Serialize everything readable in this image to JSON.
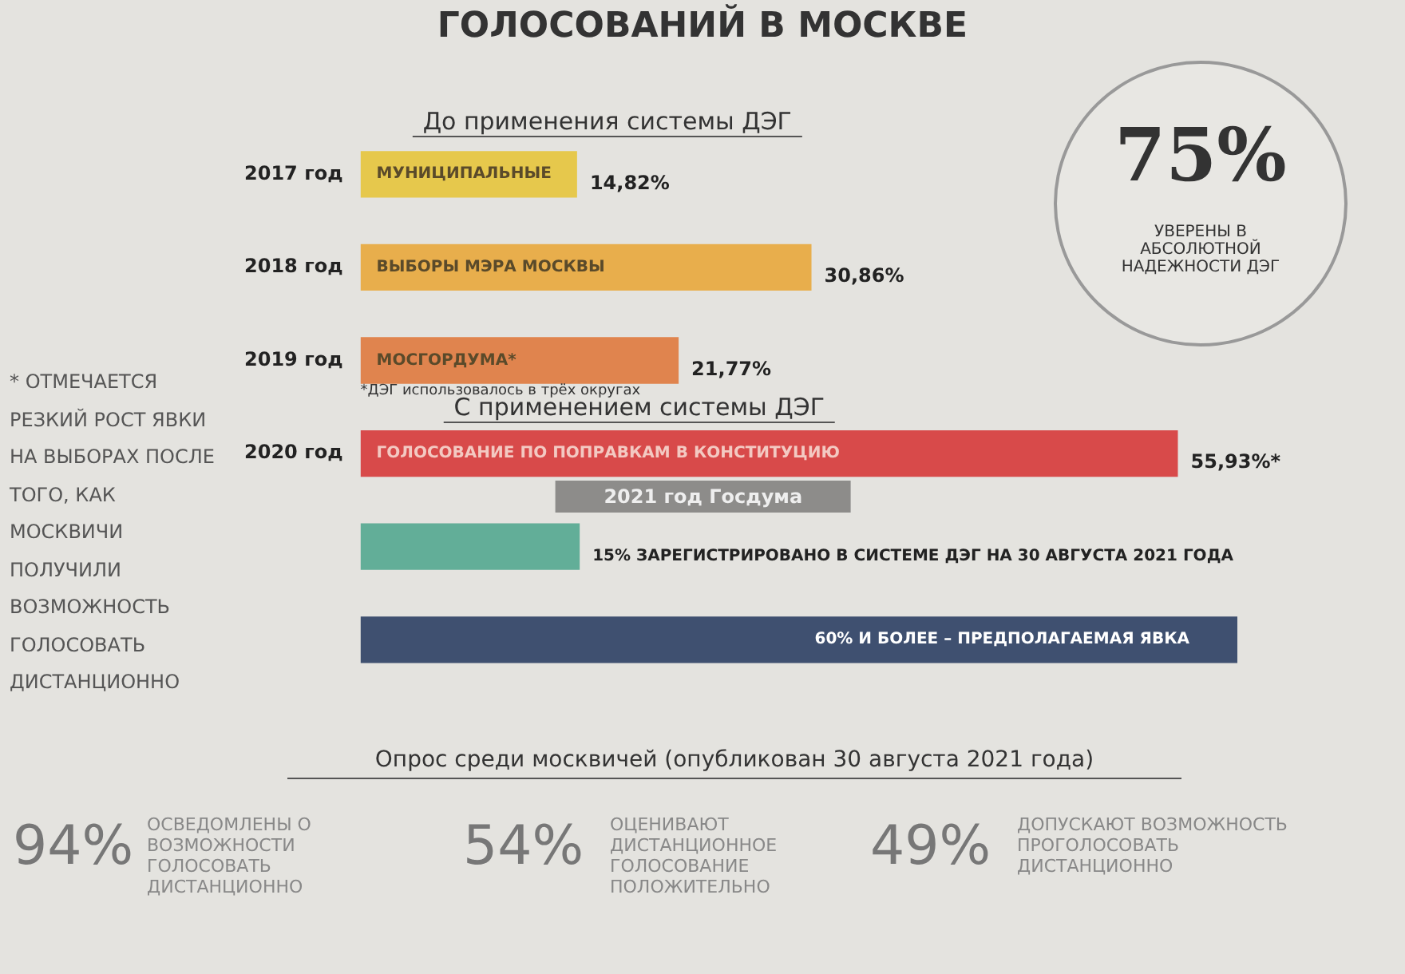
{
  "chart_data": {
    "type": "bar",
    "orientation": "horizontal",
    "title": "ГОЛОСОВАНИЙ В МОСКВЕ",
    "categories": [
      "2017 год",
      "2018 год",
      "2019 год",
      "2020 год",
      null,
      null
    ],
    "values": [
      14.82,
      30.86,
      21.77,
      55.93,
      15,
      60
    ],
    "colors": [
      "#e6c84c",
      "#e8ae4c",
      "#e0844e",
      "#d84a4a",
      "#62ae98",
      "#3f5070"
    ],
    "value_labels": [
      "14,82%",
      "30,86%",
      "21,77%",
      "55,93%*",
      "15% ЗАРЕГИСТРИРОВАНО В СИСТЕМЕ ДЭГ НА 30 АВГУСТА 2021 ГОДА",
      "60% И БОЛЕЕ – ПРЕДПОЛАГАЕМАЯ ЯВКА"
    ],
    "grid": false,
    "legend": false,
    "annotations": [
      "МУНИЦИПАЛЬНЫЕ",
      "ВЫБОРЫ МЭРА МОСКВЫ",
      "МОСГОРДУМА*",
      "ГОЛОСОВАНИЕ ПО ПОПРАВКАМ В КОНСТИТУЦИЮ",
      "До применения системы ДЭГ",
      "*ДЭГ использовалось в трёх округах",
      "С применением системы ДЭГ",
      "2021 год Госдума",
      "75%",
      "УВЕРЕНЫ В АБСОЛЮТНОЙ НАДЕЖНОСТИ ДЭГ",
      "* ОТМЕЧАЕТСЯ РЕЗКИЙ РОСТ ЯВКИ НА ВЫБОРАХ ПОСЛЕ ТОГО, КАК МОСКВИЧИ ПОЛУЧИЛИ ВОЗМОЖНОСТЬ ГОЛОСОВАТЬ ДИСТАНЦИОННО",
      "Опрос среди москвичей (опубликован 30 августа 2021 года)",
      "94%",
      "ОСВЕДОМЛЕНЫ О ВОЗМОЖНОСТИ ГОЛОСОВАТЬ ДИСТАНЦИОННО",
      "54%",
      "ОЦЕНИВАЮТ ДИСТАНЦИОННОЕ ГОЛОСОВАНИЕ ПОЛОЖИТЕЛЬНО",
      "49%",
      "ДОПУСКАЮТ ВОЗМОЖНОСТЬ ПРОГОЛОСОВАТЬ ДИСТАНЦИОННО"
    ]
  }
}
